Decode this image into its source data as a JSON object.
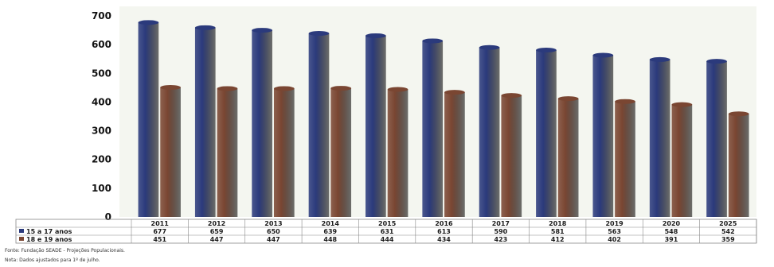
{
  "chart_data": {
    "type": "bar",
    "categories": [
      "2011",
      "2012",
      "2013",
      "2014",
      "2015",
      "2016",
      "2017",
      "2018",
      "2019",
      "2020",
      "2025"
    ],
    "series": [
      {
        "name": "15 a 17 anos",
        "values": [
          677,
          659,
          650,
          639,
          631,
          613,
          590,
          581,
          563,
          548,
          542
        ],
        "color": "#2b3a7c"
      },
      {
        "name": "18 e 19 anos",
        "values": [
          451,
          447,
          447,
          448,
          444,
          434,
          423,
          412,
          402,
          391,
          359
        ],
        "color": "#7a4632"
      }
    ],
    "ylim": [
      0,
      700
    ],
    "yticks": [
      0,
      100,
      200,
      300,
      400,
      500,
      600,
      700
    ],
    "grid": false,
    "legend": "table-bottom"
  },
  "notes": {
    "source": "Fonte: Fundação SEADE - Projeções Populacionais.",
    "note": "Nota: Dados ajustados para 1º de julho."
  }
}
